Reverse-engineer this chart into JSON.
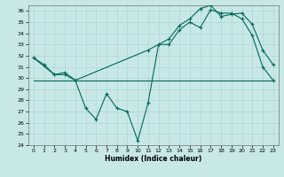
{
  "xlabel": "Humidex (Indice chaleur)",
  "bg_color": "#c8e8e8",
  "grid_color": "#b0d4d4",
  "line_color": "#006858",
  "xlim": [
    -0.5,
    23.5
  ],
  "ylim": [
    24,
    36.5
  ],
  "yticks": [
    24,
    25,
    26,
    27,
    28,
    29,
    30,
    31,
    32,
    33,
    34,
    35,
    36
  ],
  "xticks": [
    0,
    1,
    2,
    3,
    4,
    5,
    6,
    7,
    8,
    9,
    10,
    11,
    12,
    13,
    14,
    15,
    16,
    17,
    18,
    19,
    20,
    21,
    22,
    23
  ],
  "series1_x": [
    0,
    1,
    2,
    3,
    4,
    5,
    6,
    7,
    8,
    9,
    10,
    11,
    12,
    13,
    14,
    15,
    16,
    17,
    18,
    19,
    20,
    21,
    22,
    23
  ],
  "series1_y": [
    31.8,
    31.2,
    30.3,
    30.3,
    29.8,
    27.3,
    26.3,
    28.6,
    27.3,
    27.0,
    24.4,
    27.8,
    33.0,
    33.0,
    34.3,
    35.0,
    34.5,
    36.1,
    35.8,
    35.8,
    35.3,
    33.8,
    31.0,
    29.8
  ],
  "series2_x": [
    0,
    2,
    3,
    4,
    11,
    13,
    14,
    15,
    16,
    17,
    18,
    19,
    20,
    21,
    22,
    23
  ],
  "series2_y": [
    31.8,
    30.3,
    30.5,
    29.8,
    32.5,
    33.5,
    34.7,
    35.3,
    36.2,
    36.5,
    35.5,
    35.7,
    35.8,
    34.8,
    32.5,
    31.2
  ],
  "series3_x": [
    0,
    23
  ],
  "series3_y": [
    29.8,
    29.8
  ],
  "figsize": [
    3.2,
    2.0
  ],
  "dpi": 100
}
